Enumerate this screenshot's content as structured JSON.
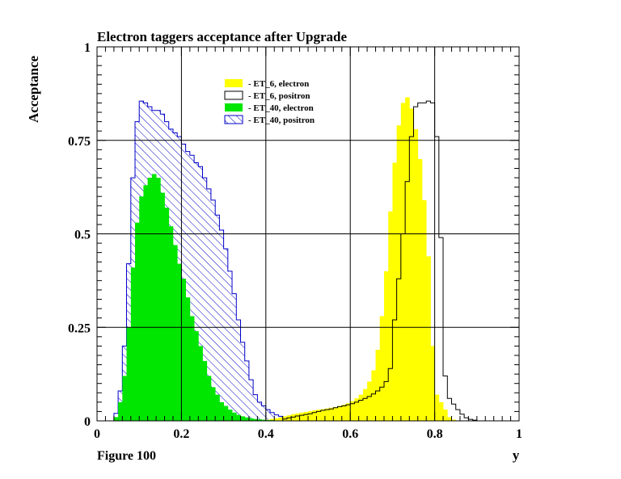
{
  "figure_label": "Figure 100",
  "chart_data": {
    "type": "bar",
    "title": "Electron taggers acceptance after Upgrade",
    "xlabel": "y",
    "ylabel": "Acceptance",
    "xlim": [
      0,
      1
    ],
    "ylim": [
      0,
      1
    ],
    "grid": true,
    "x_ticks": [
      "0",
      "0.2",
      "0.4",
      "0.6",
      "0.8",
      "1"
    ],
    "y_ticks": [
      "0",
      "0.25",
      "0.5",
      "0.75",
      "1"
    ],
    "legend_position": "top-center",
    "bin_width": 0.01,
    "series": [
      {
        "name": "- ET_6, electron",
        "style": "filled",
        "color": "#ffff00",
        "x": [
          0.4,
          0.41,
          0.42,
          0.43,
          0.44,
          0.45,
          0.46,
          0.47,
          0.48,
          0.49,
          0.5,
          0.51,
          0.52,
          0.53,
          0.54,
          0.55,
          0.56,
          0.57,
          0.58,
          0.59,
          0.6,
          0.61,
          0.62,
          0.63,
          0.64,
          0.65,
          0.66,
          0.67,
          0.68,
          0.69,
          0.7,
          0.71,
          0.72,
          0.73,
          0.74,
          0.75,
          0.76,
          0.77,
          0.78,
          0.79,
          0.8,
          0.81,
          0.82,
          0.83,
          0.84
        ],
        "values": [
          0.003,
          0.005,
          0.007,
          0.009,
          0.012,
          0.015,
          0.018,
          0.02,
          0.022,
          0.024,
          0.026,
          0.028,
          0.03,
          0.031,
          0.033,
          0.035,
          0.037,
          0.04,
          0.043,
          0.047,
          0.053,
          0.06,
          0.07,
          0.085,
          0.105,
          0.135,
          0.19,
          0.28,
          0.4,
          0.56,
          0.69,
          0.79,
          0.85,
          0.865,
          0.835,
          0.78,
          0.7,
          0.59,
          0.44,
          0.2,
          0.07,
          0.05,
          0.03,
          0.01,
          0.003
        ]
      },
      {
        "name": "- ET_6, positron",
        "style": "outline",
        "color": "#000000",
        "x": [
          0.44,
          0.45,
          0.46,
          0.47,
          0.48,
          0.49,
          0.5,
          0.51,
          0.52,
          0.53,
          0.54,
          0.55,
          0.56,
          0.57,
          0.58,
          0.59,
          0.6,
          0.61,
          0.62,
          0.63,
          0.64,
          0.65,
          0.66,
          0.67,
          0.68,
          0.69,
          0.7,
          0.71,
          0.72,
          0.73,
          0.74,
          0.75,
          0.76,
          0.77,
          0.78,
          0.79,
          0.8,
          0.81,
          0.82,
          0.83,
          0.84,
          0.85,
          0.86,
          0.87,
          0.88,
          0.89
        ],
        "values": [
          0.005,
          0.008,
          0.01,
          0.013,
          0.015,
          0.017,
          0.019,
          0.022,
          0.025,
          0.028,
          0.03,
          0.032,
          0.035,
          0.038,
          0.04,
          0.043,
          0.046,
          0.05,
          0.055,
          0.06,
          0.065,
          0.072,
          0.08,
          0.09,
          0.105,
          0.14,
          0.27,
          0.38,
          0.5,
          0.64,
          0.76,
          0.84,
          0.85,
          0.85,
          0.855,
          0.85,
          0.76,
          0.49,
          0.12,
          0.06,
          0.045,
          0.03,
          0.018,
          0.008,
          0.004,
          0.002
        ]
      },
      {
        "name": "- ET_40, electron",
        "style": "filled",
        "color": "#00e600",
        "x": [
          0.04,
          0.05,
          0.06,
          0.07,
          0.08,
          0.09,
          0.1,
          0.11,
          0.12,
          0.13,
          0.14,
          0.15,
          0.16,
          0.17,
          0.18,
          0.19,
          0.2,
          0.21,
          0.22,
          0.23,
          0.24,
          0.25,
          0.26,
          0.27,
          0.28,
          0.29,
          0.3,
          0.31,
          0.32,
          0.33,
          0.34,
          0.35,
          0.36,
          0.37,
          0.38,
          0.39,
          0.4,
          0.41,
          0.42,
          0.43,
          0.44
        ],
        "values": [
          0.01,
          0.05,
          0.12,
          0.25,
          0.41,
          0.53,
          0.6,
          0.63,
          0.65,
          0.66,
          0.65,
          0.61,
          0.57,
          0.52,
          0.47,
          0.42,
          0.38,
          0.33,
          0.28,
          0.24,
          0.2,
          0.16,
          0.12,
          0.09,
          0.07,
          0.05,
          0.04,
          0.03,
          0.022,
          0.016,
          0.012,
          0.009,
          0.007,
          0.005,
          0.004,
          0.003,
          0.002,
          0.002,
          0.001,
          0.001,
          0.001
        ]
      },
      {
        "name": "- ET_40, positron",
        "style": "hatched",
        "color": "#0000c8",
        "x": [
          0.04,
          0.05,
          0.06,
          0.07,
          0.08,
          0.09,
          0.1,
          0.11,
          0.12,
          0.13,
          0.14,
          0.15,
          0.16,
          0.17,
          0.18,
          0.19,
          0.2,
          0.21,
          0.22,
          0.23,
          0.24,
          0.25,
          0.26,
          0.27,
          0.28,
          0.29,
          0.3,
          0.31,
          0.32,
          0.33,
          0.34,
          0.35,
          0.36,
          0.37,
          0.38,
          0.39,
          0.4,
          0.41,
          0.42,
          0.43,
          0.44,
          0.45,
          0.46,
          0.47
        ],
        "values": [
          0.02,
          0.08,
          0.2,
          0.42,
          0.65,
          0.8,
          0.855,
          0.85,
          0.84,
          0.83,
          0.83,
          0.82,
          0.8,
          0.78,
          0.77,
          0.76,
          0.74,
          0.72,
          0.71,
          0.69,
          0.68,
          0.65,
          0.62,
          0.59,
          0.55,
          0.51,
          0.46,
          0.4,
          0.34,
          0.27,
          0.21,
          0.16,
          0.11,
          0.07,
          0.05,
          0.04,
          0.03,
          0.022,
          0.016,
          0.012,
          0.009,
          0.006,
          0.004,
          0.002
        ]
      }
    ]
  }
}
